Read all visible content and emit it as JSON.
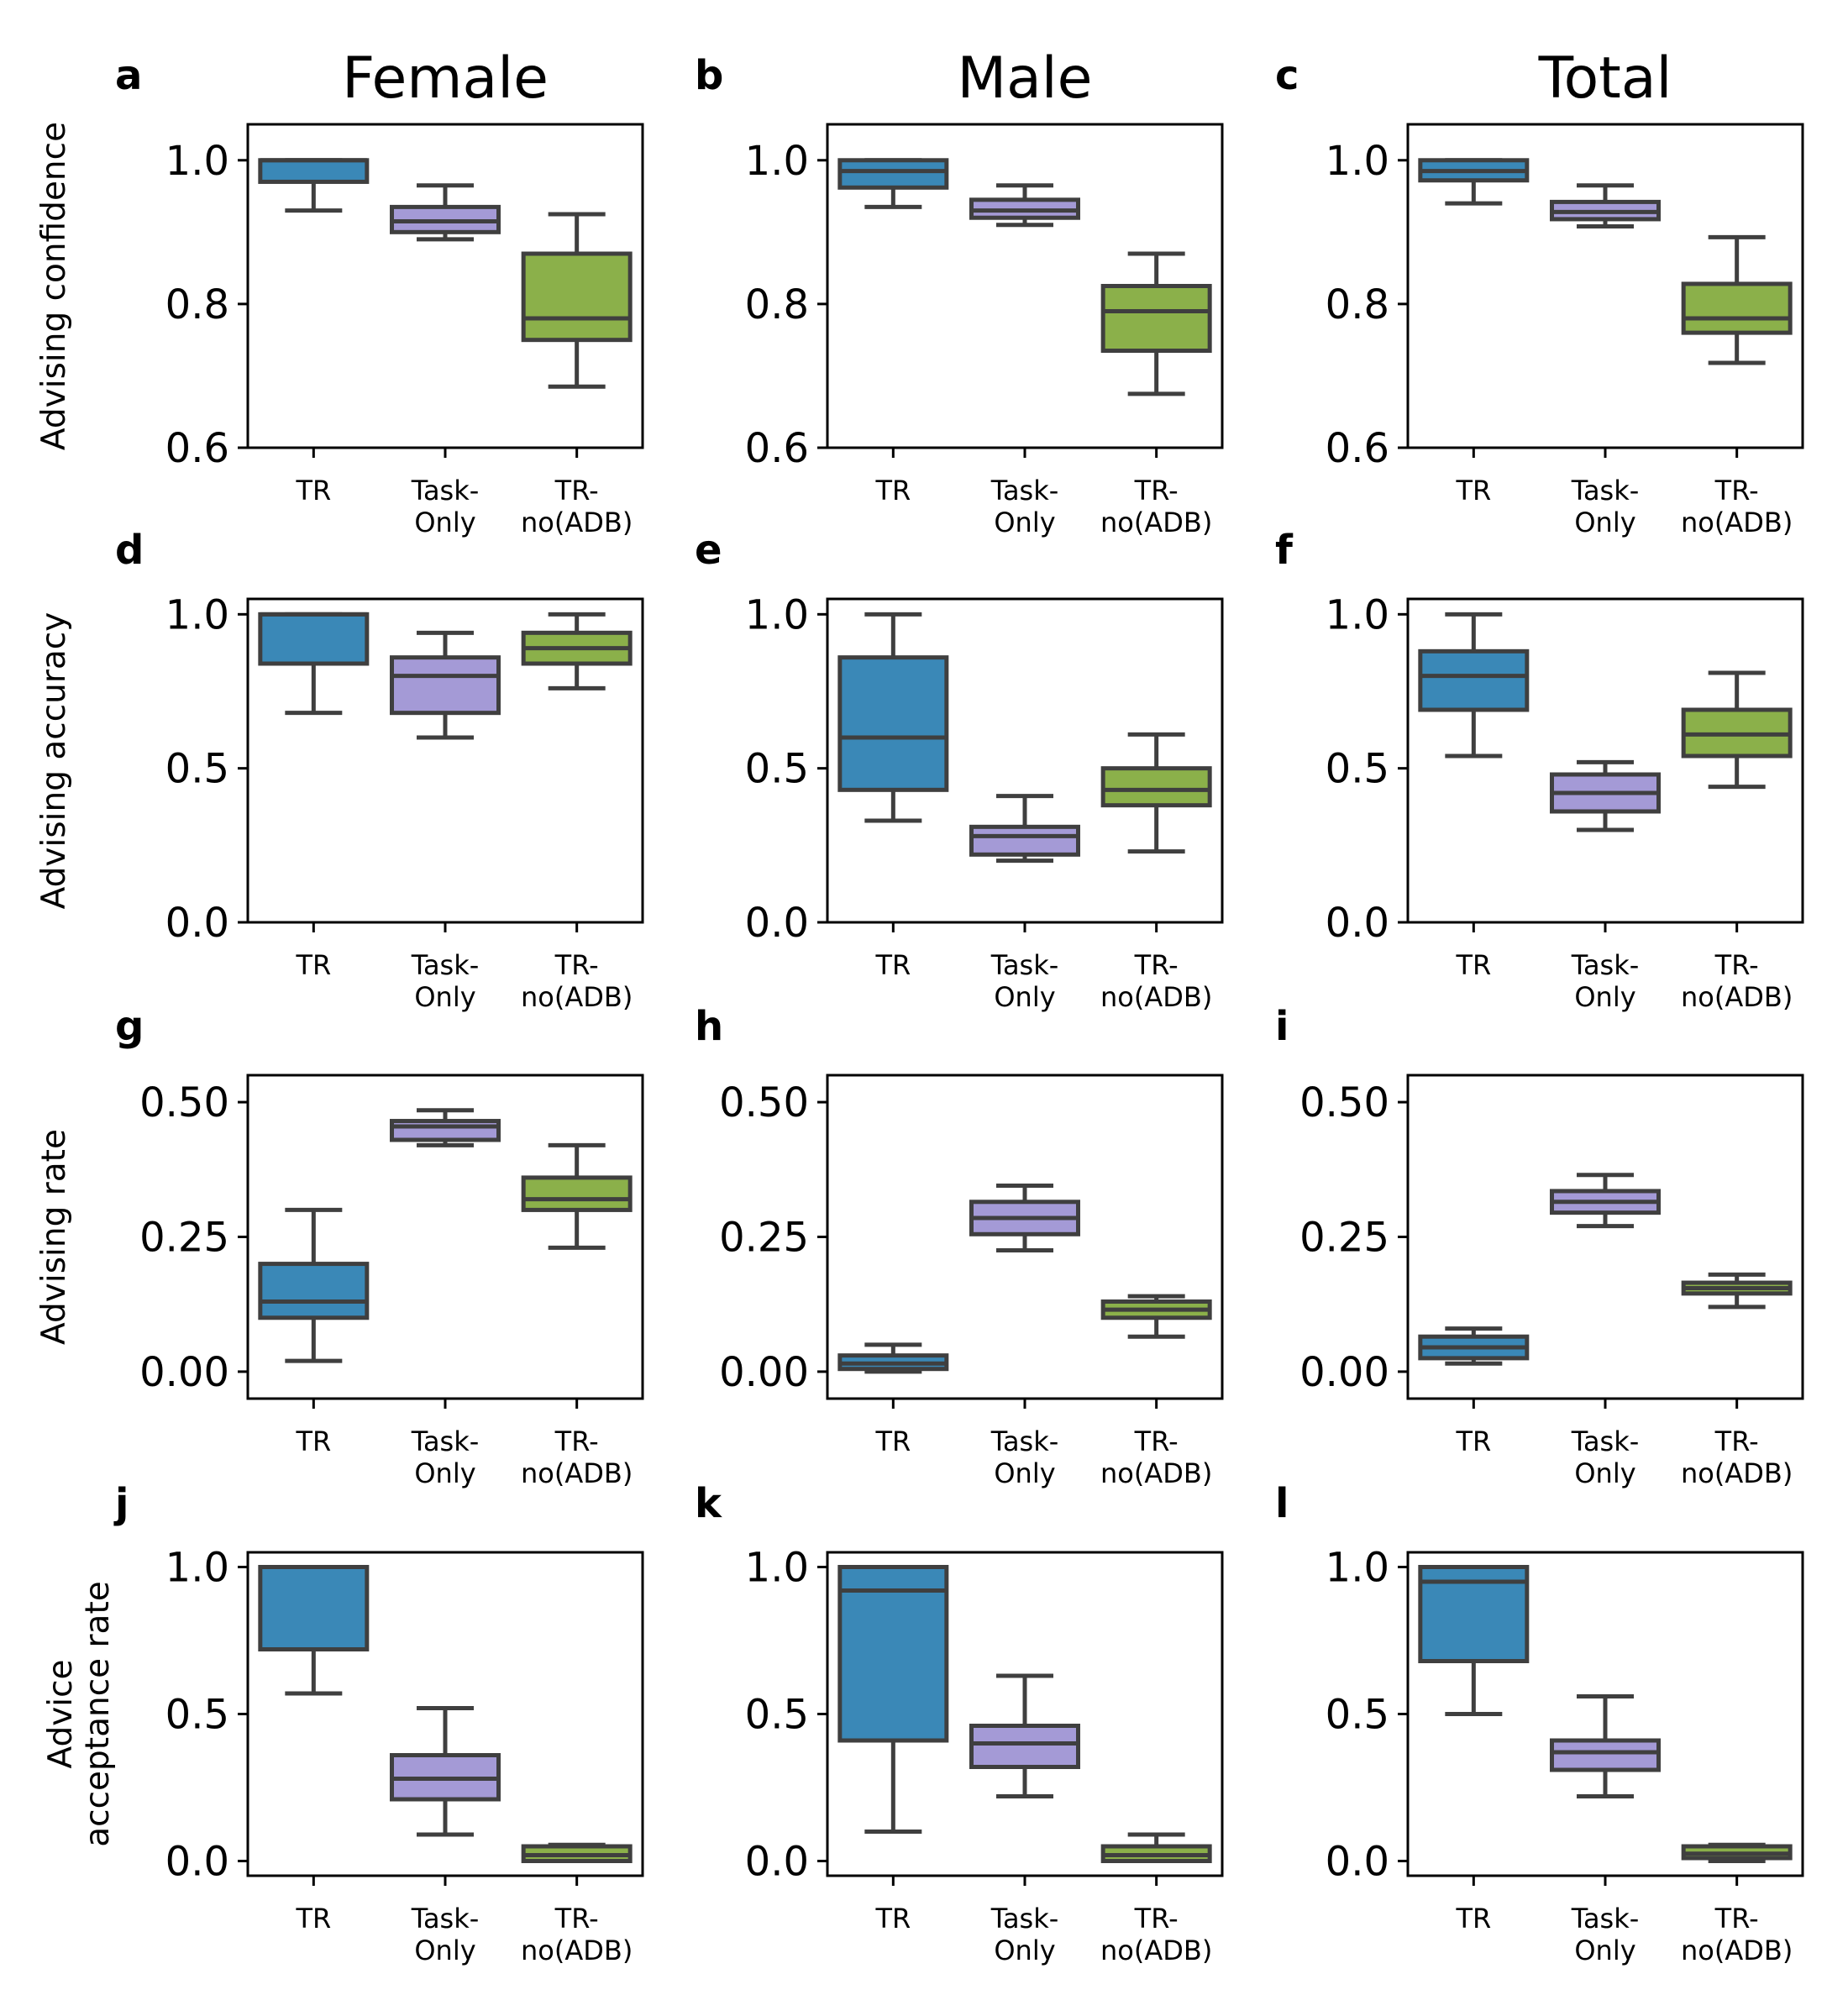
{
  "colors": {
    "TR": "#3a88b7",
    "Task-Only": "#a49ad6",
    "TR-no(ADB)": "#8bb04a",
    "edge": "#3f3f3f"
  },
  "columns": [
    "Female",
    "Male",
    "Total"
  ],
  "chart_data": [
    {
      "type": "box",
      "panel": "a",
      "column": "Female",
      "title": "Female",
      "ylabel": "Advising confidence",
      "ylim": [
        0.6,
        1.05
      ],
      "yticks": [
        "0.6",
        "0.8",
        "1.0"
      ],
      "categories": [
        "TR",
        "Task-\nOnly",
        "TR-\nno(ADB)"
      ],
      "boxes": [
        {
          "group": "TR",
          "whislo": 0.93,
          "q1": 0.97,
          "med": 1.0,
          "q3": 1.0,
          "whishi": 1.0
        },
        {
          "group": "Task-Only",
          "whislo": 0.89,
          "q1": 0.9,
          "med": 0.915,
          "q3": 0.935,
          "whishi": 0.965
        },
        {
          "group": "TR-no(ADB)",
          "whislo": 0.685,
          "q1": 0.75,
          "med": 0.78,
          "q3": 0.87,
          "whishi": 0.925
        }
      ]
    },
    {
      "type": "box",
      "panel": "b",
      "column": "Male",
      "title": "Male",
      "ylabel": "",
      "ylim": [
        0.6,
        1.05
      ],
      "yticks": [
        "0.6",
        "0.8",
        "1.0"
      ],
      "categories": [
        "TR",
        "Task-\nOnly",
        "TR-\nno(ADB)"
      ],
      "boxes": [
        {
          "group": "TR",
          "whislo": 0.935,
          "q1": 0.962,
          "med": 0.985,
          "q3": 1.0,
          "whishi": 1.0
        },
        {
          "group": "Task-Only",
          "whislo": 0.91,
          "q1": 0.92,
          "med": 0.93,
          "q3": 0.945,
          "whishi": 0.965
        },
        {
          "group": "TR-no(ADB)",
          "whislo": 0.675,
          "q1": 0.735,
          "med": 0.79,
          "q3": 0.825,
          "whishi": 0.87
        }
      ]
    },
    {
      "type": "box",
      "panel": "c",
      "column": "Total",
      "title": "Total",
      "ylabel": "",
      "ylim": [
        0.6,
        1.05
      ],
      "yticks": [
        "0.6",
        "0.8",
        "1.0"
      ],
      "categories": [
        "TR",
        "Task-\nOnly",
        "TR-\nno(ADB)"
      ],
      "boxes": [
        {
          "group": "TR",
          "whislo": 0.94,
          "q1": 0.972,
          "med": 0.985,
          "q3": 1.0,
          "whishi": 1.0
        },
        {
          "group": "Task-Only",
          "whislo": 0.908,
          "q1": 0.918,
          "med": 0.928,
          "q3": 0.942,
          "whishi": 0.965
        },
        {
          "group": "TR-no(ADB)",
          "whislo": 0.718,
          "q1": 0.76,
          "med": 0.78,
          "q3": 0.828,
          "whishi": 0.893
        }
      ]
    },
    {
      "type": "box",
      "panel": "d",
      "column": "Female",
      "title": "",
      "ylabel": "Advising accuracy",
      "ylim": [
        0.0,
        1.05
      ],
      "yticks": [
        "0.0",
        "0.5",
        "1.0"
      ],
      "categories": [
        "TR",
        "Task-\nOnly",
        "TR-\nno(ADB)"
      ],
      "boxes": [
        {
          "group": "TR",
          "whislo": 0.68,
          "q1": 0.84,
          "med": 1.0,
          "q3": 1.0,
          "whishi": 1.0
        },
        {
          "group": "Task-Only",
          "whislo": 0.6,
          "q1": 0.68,
          "med": 0.8,
          "q3": 0.86,
          "whishi": 0.94
        },
        {
          "group": "TR-no(ADB)",
          "whislo": 0.76,
          "q1": 0.84,
          "med": 0.89,
          "q3": 0.94,
          "whishi": 1.0
        }
      ]
    },
    {
      "type": "box",
      "panel": "e",
      "column": "Male",
      "title": "",
      "ylabel": "",
      "ylim": [
        0.0,
        1.05
      ],
      "yticks": [
        "0.0",
        "0.5",
        "1.0"
      ],
      "categories": [
        "TR",
        "Task-\nOnly",
        "TR-\nno(ADB)"
      ],
      "boxes": [
        {
          "group": "TR",
          "whislo": 0.33,
          "q1": 0.43,
          "med": 0.6,
          "q3": 0.86,
          "whishi": 1.0
        },
        {
          "group": "Task-Only",
          "whislo": 0.2,
          "q1": 0.22,
          "med": 0.28,
          "q3": 0.31,
          "whishi": 0.41
        },
        {
          "group": "TR-no(ADB)",
          "whislo": 0.23,
          "q1": 0.38,
          "med": 0.43,
          "q3": 0.5,
          "whishi": 0.61
        }
      ]
    },
    {
      "type": "box",
      "panel": "f",
      "column": "Total",
      "title": "",
      "ylabel": "",
      "ylim": [
        0.0,
        1.05
      ],
      "yticks": [
        "0.0",
        "0.5",
        "1.0"
      ],
      "categories": [
        "TR",
        "Task-\nOnly",
        "TR-\nno(ADB)"
      ],
      "boxes": [
        {
          "group": "TR",
          "whislo": 0.54,
          "q1": 0.69,
          "med": 0.8,
          "q3": 0.88,
          "whishi": 1.0
        },
        {
          "group": "Task-Only",
          "whislo": 0.3,
          "q1": 0.36,
          "med": 0.42,
          "q3": 0.48,
          "whishi": 0.52
        },
        {
          "group": "TR-no(ADB)",
          "whislo": 0.44,
          "q1": 0.54,
          "med": 0.61,
          "q3": 0.69,
          "whishi": 0.81
        }
      ]
    },
    {
      "type": "box",
      "panel": "g",
      "column": "Female",
      "title": "",
      "ylabel": "Advising rate",
      "ylim": [
        -0.05,
        0.55
      ],
      "yticks": [
        "0.00",
        "0.25",
        "0.50"
      ],
      "categories": [
        "TR",
        "Task-\nOnly",
        "TR-\nno(ADB)"
      ],
      "boxes": [
        {
          "group": "TR",
          "whislo": 0.02,
          "q1": 0.1,
          "med": 0.13,
          "q3": 0.2,
          "whishi": 0.3
        },
        {
          "group": "Task-Only",
          "whislo": 0.42,
          "q1": 0.43,
          "med": 0.455,
          "q3": 0.465,
          "whishi": 0.485
        },
        {
          "group": "TR-no(ADB)",
          "whislo": 0.23,
          "q1": 0.3,
          "med": 0.32,
          "q3": 0.36,
          "whishi": 0.42
        }
      ]
    },
    {
      "type": "box",
      "panel": "h",
      "column": "Male",
      "title": "",
      "ylabel": "",
      "ylim": [
        -0.05,
        0.55
      ],
      "yticks": [
        "0.00",
        "0.25",
        "0.50"
      ],
      "categories": [
        "TR",
        "Task-\nOnly",
        "TR-\nno(ADB)"
      ],
      "boxes": [
        {
          "group": "TR",
          "whislo": 0.0,
          "q1": 0.005,
          "med": 0.015,
          "q3": 0.03,
          "whishi": 0.05
        },
        {
          "group": "Task-Only",
          "whislo": 0.225,
          "q1": 0.255,
          "med": 0.285,
          "q3": 0.315,
          "whishi": 0.345
        },
        {
          "group": "TR-no(ADB)",
          "whislo": 0.065,
          "q1": 0.1,
          "med": 0.115,
          "q3": 0.13,
          "whishi": 0.14
        }
      ]
    },
    {
      "type": "box",
      "panel": "i",
      "column": "Total",
      "title": "",
      "ylabel": "",
      "ylim": [
        -0.05,
        0.55
      ],
      "yticks": [
        "0.00",
        "0.25",
        "0.50"
      ],
      "categories": [
        "TR",
        "Task-\nOnly",
        "TR-\nno(ADB)"
      ],
      "boxes": [
        {
          "group": "TR",
          "whislo": 0.015,
          "q1": 0.025,
          "med": 0.045,
          "q3": 0.065,
          "whishi": 0.08
        },
        {
          "group": "Task-Only",
          "whislo": 0.27,
          "q1": 0.295,
          "med": 0.315,
          "q3": 0.335,
          "whishi": 0.365
        },
        {
          "group": "TR-no(ADB)",
          "whislo": 0.12,
          "q1": 0.145,
          "med": 0.155,
          "q3": 0.165,
          "whishi": 0.18
        }
      ]
    },
    {
      "type": "box",
      "panel": "j",
      "column": "Female",
      "title": "",
      "ylabel": "Advice\nacceptance rate",
      "ylim": [
        -0.05,
        1.05
      ],
      "yticks": [
        "0.0",
        "0.5",
        "1.0"
      ],
      "categories": [
        "TR",
        "Task-\nOnly",
        "TR-\nno(ADB)"
      ],
      "boxes": [
        {
          "group": "TR",
          "whislo": 0.57,
          "q1": 0.72,
          "med": 1.0,
          "q3": 1.0,
          "whishi": 1.0
        },
        {
          "group": "Task-Only",
          "whislo": 0.09,
          "q1": 0.21,
          "med": 0.28,
          "q3": 0.36,
          "whishi": 0.52
        },
        {
          "group": "TR-no(ADB)",
          "whislo": 0.0,
          "q1": 0.0,
          "med": 0.02,
          "q3": 0.05,
          "whishi": 0.055
        }
      ]
    },
    {
      "type": "box",
      "panel": "k",
      "column": "Male",
      "title": "",
      "ylabel": "",
      "ylim": [
        -0.05,
        1.05
      ],
      "yticks": [
        "0.0",
        "0.5",
        "1.0"
      ],
      "categories": [
        "TR",
        "Task-\nOnly",
        "TR-\nno(ADB)"
      ],
      "boxes": [
        {
          "group": "TR",
          "whislo": 0.1,
          "q1": 0.41,
          "med": 0.92,
          "q3": 1.0,
          "whishi": 1.0
        },
        {
          "group": "Task-Only",
          "whislo": 0.22,
          "q1": 0.32,
          "med": 0.4,
          "q3": 0.46,
          "whishi": 0.63
        },
        {
          "group": "TR-no(ADB)",
          "whislo": 0.0,
          "q1": 0.0,
          "med": 0.02,
          "q3": 0.05,
          "whishi": 0.09
        }
      ]
    },
    {
      "type": "box",
      "panel": "l",
      "column": "Total",
      "title": "",
      "ylabel": "",
      "ylim": [
        -0.05,
        1.05
      ],
      "yticks": [
        "0.0",
        "0.5",
        "1.0"
      ],
      "categories": [
        "TR",
        "Task-\nOnly",
        "TR-\nno(ADB)"
      ],
      "boxes": [
        {
          "group": "TR",
          "whislo": 0.5,
          "q1": 0.68,
          "med": 0.95,
          "q3": 1.0,
          "whishi": 1.0
        },
        {
          "group": "Task-Only",
          "whislo": 0.22,
          "q1": 0.31,
          "med": 0.37,
          "q3": 0.41,
          "whishi": 0.56
        },
        {
          "group": "TR-no(ADB)",
          "whislo": 0.0,
          "q1": 0.01,
          "med": 0.025,
          "q3": 0.05,
          "whishi": 0.055
        }
      ]
    }
  ]
}
